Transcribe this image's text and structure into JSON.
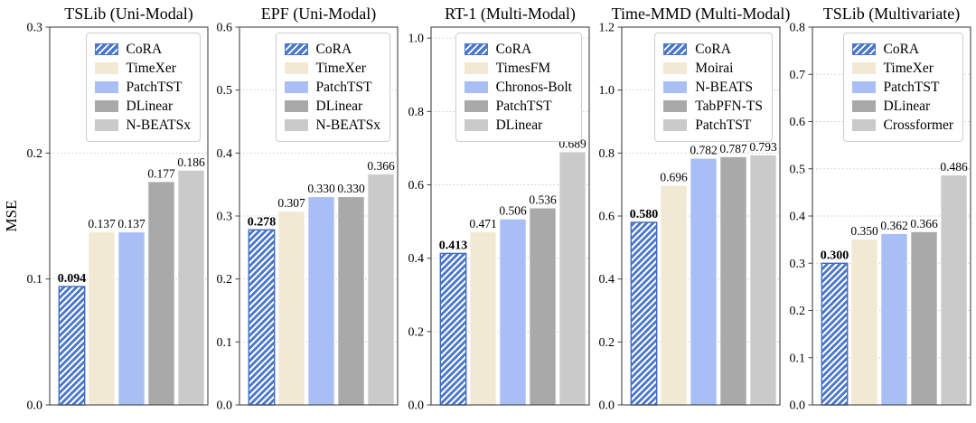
{
  "figure": {
    "ylabel": "MSE",
    "palette": {
      "cora_blue": "#4b77c9",
      "cora_edge": "#3f6cc0",
      "cream": "#f2e9d4",
      "light_blue": "#a9bef5",
      "gray": "#a9a9a9",
      "light_gray": "#cacaca",
      "bar_colors": [
        "#4b77c9",
        "#f2e9d4",
        "#a9bef5",
        "#a9a9a9",
        "#cacaca"
      ],
      "grid_color": "#c9c9c9",
      "frame_color": "#444444",
      "text_color": "#000000",
      "legend_border": "#cccccc"
    }
  },
  "chart_data": [
    {
      "type": "bar",
      "title": "TSLib (Uni-Modal)",
      "ylabel": "MSE",
      "ylim": [
        0,
        0.3
      ],
      "yticks": [
        "0.0",
        "0.1",
        "0.2",
        "0.3"
      ],
      "categories": [
        "CoRA",
        "TimeXer",
        "PatchTST",
        "DLinear",
        "N-BEATSx"
      ],
      "values": [
        0.094,
        0.137,
        0.137,
        0.177,
        0.186
      ],
      "labels": [
        "0.094",
        "0.137",
        "0.137",
        "0.177",
        "0.186"
      ],
      "grid": "dotted-horizontal",
      "legend_position": "upper right"
    },
    {
      "type": "bar",
      "title": "EPF (Uni-Modal)",
      "ylabel": "",
      "ylim": [
        0,
        0.6
      ],
      "yticks": [
        "0.0",
        "0.1",
        "0.2",
        "0.3",
        "0.4",
        "0.5",
        "0.6"
      ],
      "categories": [
        "CoRA",
        "TimeXer",
        "PatchTST",
        "DLinear",
        "N-BEATSx"
      ],
      "values": [
        0.278,
        0.307,
        0.33,
        0.33,
        0.366
      ],
      "labels": [
        "0.278",
        "0.307",
        "0.330",
        "0.330",
        "0.366"
      ],
      "grid": "dotted-horizontal",
      "legend_position": "upper right"
    },
    {
      "type": "bar",
      "title": "RT-1 (Multi-Modal)",
      "ylabel": "",
      "ylim": [
        0,
        1.03
      ],
      "yticks": [
        "0.0",
        "0.2",
        "0.4",
        "0.6",
        "0.8",
        "1.0"
      ],
      "categories": [
        "CoRA",
        "TimesFM",
        "Chronos-Bolt",
        "PatchTST",
        "DLinear"
      ],
      "values": [
        0.413,
        0.471,
        0.506,
        0.536,
        0.689
      ],
      "labels": [
        "0.413",
        "0.471",
        "0.506",
        "0.536",
        "0.689"
      ],
      "grid": "dotted-horizontal",
      "legend_position": "upper right"
    },
    {
      "type": "bar",
      "title": "Time-MMD (Multi-Modal)",
      "ylabel": "",
      "ylim": [
        0,
        1.2
      ],
      "yticks": [
        "0.0",
        "0.2",
        "0.4",
        "0.6",
        "0.8",
        "1.0",
        "1.2"
      ],
      "categories": [
        "CoRA",
        "Moirai",
        "N-BEATS",
        "TabPFN-TS",
        "PatchTST"
      ],
      "values": [
        0.58,
        0.696,
        0.782,
        0.787,
        0.793
      ],
      "labels": [
        "0.580",
        "0.696",
        "0.782",
        "0.787",
        "0.793"
      ],
      "grid": "dotted-horizontal",
      "legend_position": "upper right"
    },
    {
      "type": "bar",
      "title": "TSLib (Multivariate)",
      "ylabel": "",
      "ylim": [
        0,
        0.8
      ],
      "yticks": [
        "0.0",
        "0.1",
        "0.2",
        "0.3",
        "0.4",
        "0.5",
        "0.6",
        "0.7",
        "0.8"
      ],
      "categories": [
        "CoRA",
        "TimeXer",
        "PatchTST",
        "DLinear",
        "Crossformer"
      ],
      "values": [
        0.3,
        0.35,
        0.362,
        0.366,
        0.486
      ],
      "labels": [
        "0.300",
        "0.350",
        "0.362",
        "0.366",
        "0.486"
      ],
      "grid": "dotted-horizontal",
      "legend_position": "upper right"
    }
  ]
}
